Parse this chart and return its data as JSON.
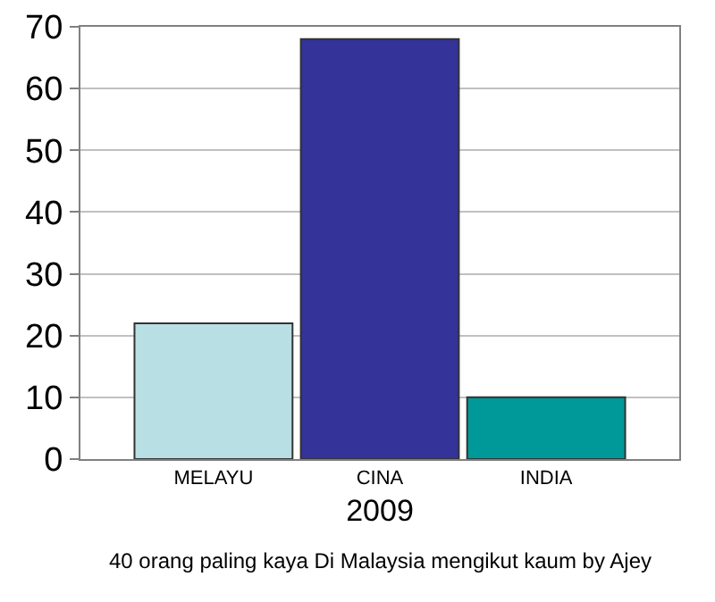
{
  "chart_data": {
    "type": "bar",
    "categories": [
      "MELAYU",
      "CINA",
      "INDIA"
    ],
    "values": [
      22,
      68,
      10
    ],
    "colors": [
      "#b8dfe4",
      "#333399",
      "#009999"
    ],
    "xlabel": "2009",
    "ylim": [
      0,
      70
    ],
    "yticks": [
      0,
      10,
      20,
      30,
      40,
      50,
      60,
      70
    ],
    "grid": "y",
    "annotations": [
      "40 orang paling kaya Di Malaysia mengikut kaum by Ajey"
    ]
  }
}
